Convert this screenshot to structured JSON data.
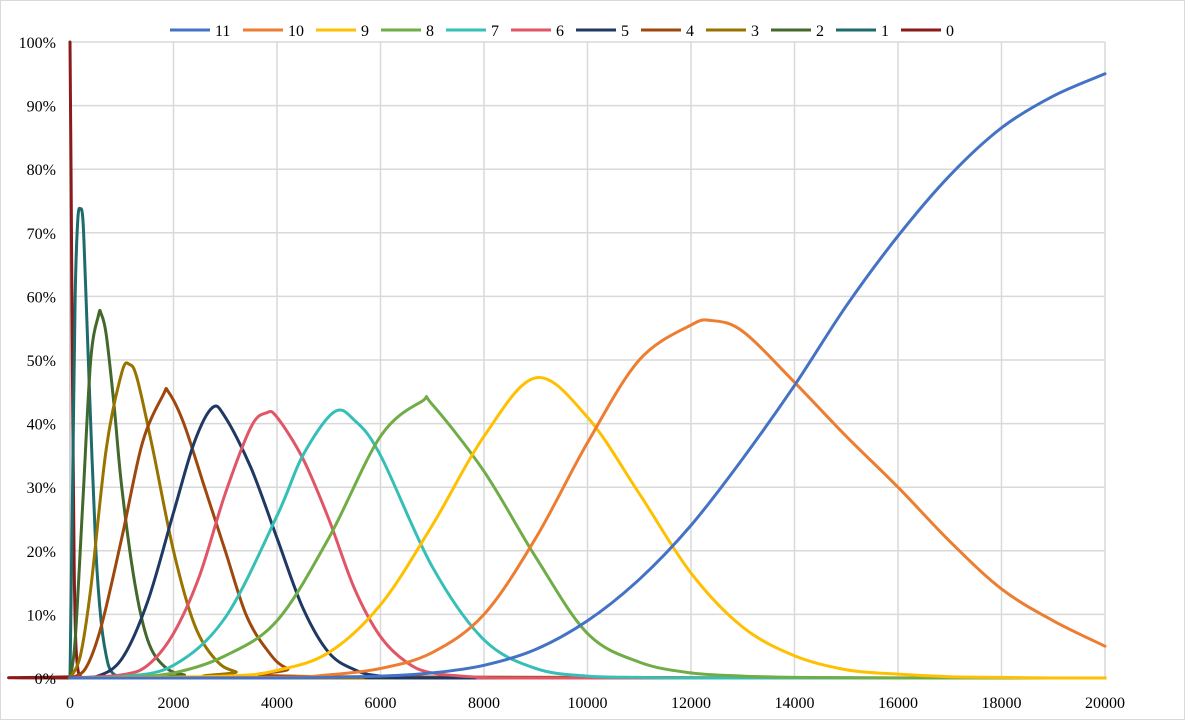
{
  "chart_data": {
    "type": "line",
    "title": "",
    "xlabel": "",
    "ylabel": "",
    "xlim": [
      0,
      20000
    ],
    "ylim": [
      0,
      1
    ],
    "x_ticks": [
      0,
      2000,
      4000,
      6000,
      8000,
      10000,
      12000,
      14000,
      16000,
      18000,
      20000
    ],
    "x_tick_labels": [
      "0",
      "2000",
      "4000",
      "6000",
      "8000",
      "10000",
      "12000",
      "14000",
      "16000",
      "18000",
      "20000"
    ],
    "y_ticks": [
      0,
      0.1,
      0.2,
      0.3,
      0.4,
      0.5,
      0.6,
      0.7,
      0.8,
      0.9,
      1.0
    ],
    "y_tick_labels": [
      "0%",
      "10%",
      "20%",
      "30%",
      "40%",
      "50%",
      "60%",
      "70%",
      "80%",
      "90%",
      "100%"
    ],
    "grid": true,
    "legend_position": "top",
    "series": [
      {
        "name": "11",
        "color": "#4472C4",
        "x": [
          0,
          4000,
          6000,
          7000,
          8000,
          9000,
          10000,
          11000,
          12000,
          13000,
          14000,
          15000,
          16000,
          17000,
          18000,
          19000,
          20000
        ],
        "y": [
          0,
          0.0,
          0.003,
          0.008,
          0.02,
          0.045,
          0.09,
          0.155,
          0.24,
          0.345,
          0.46,
          0.585,
          0.695,
          0.79,
          0.865,
          0.915,
          0.95
        ]
      },
      {
        "name": "10",
        "color": "#ED7D31",
        "x": [
          0,
          4000,
          5000,
          6000,
          7000,
          8000,
          9000,
          10000,
          11000,
          12000,
          12400,
          13000,
          14000,
          15000,
          16000,
          17000,
          18000,
          19000,
          20000
        ],
        "y": [
          0,
          0.001,
          0.005,
          0.015,
          0.04,
          0.1,
          0.22,
          0.37,
          0.5,
          0.555,
          0.562,
          0.545,
          0.465,
          0.38,
          0.3,
          0.215,
          0.14,
          0.09,
          0.05
        ]
      },
      {
        "name": "9",
        "color": "#FFC000",
        "x": [
          0,
          3000,
          4000,
          5000,
          6000,
          7000,
          8000,
          9000,
          10000,
          11000,
          12000,
          13000,
          14000,
          15000,
          16000,
          17000,
          18000,
          19000,
          20000
        ],
        "y": [
          0,
          0.003,
          0.012,
          0.04,
          0.115,
          0.24,
          0.38,
          0.472,
          0.41,
          0.29,
          0.165,
          0.08,
          0.035,
          0.013,
          0.006,
          0.002,
          0.001,
          0,
          0
        ]
      },
      {
        "name": "8",
        "color": "#70AD47",
        "x": [
          0,
          1000,
          2000,
          3000,
          4000,
          5000,
          6000,
          6800,
          7000,
          8000,
          9000,
          10000,
          11000,
          12000,
          13000,
          14000,
          16000,
          20000
        ],
        "y": [
          0,
          0.001,
          0.008,
          0.035,
          0.09,
          0.22,
          0.38,
          0.435,
          0.43,
          0.325,
          0.19,
          0.07,
          0.025,
          0.008,
          0.003,
          0.001,
          0,
          0
        ]
      },
      {
        "name": "7",
        "color": "#36BFB6",
        "x": [
          0,
          1000,
          2000,
          3000,
          4000,
          4500,
          5100,
          5500,
          6000,
          7000,
          8000,
          9000,
          10000,
          11000,
          12000,
          14000,
          20000
        ],
        "y": [
          0,
          0.002,
          0.02,
          0.095,
          0.255,
          0.35,
          0.418,
          0.405,
          0.35,
          0.175,
          0.06,
          0.015,
          0.003,
          0.001,
          0,
          0,
          0
        ]
      },
      {
        "name": "6",
        "color": "#E05666",
        "x": [
          0,
          1000,
          1500,
          2000,
          2500,
          3000,
          3500,
          3800,
          4000,
          4500,
          5000,
          5500,
          6000,
          6500,
          7000,
          8000,
          9000,
          20000
        ],
        "y": [
          0,
          0.005,
          0.02,
          0.07,
          0.16,
          0.29,
          0.395,
          0.417,
          0.41,
          0.345,
          0.25,
          0.14,
          0.065,
          0.025,
          0.008,
          0.001,
          0,
          0
        ]
      },
      {
        "name": "5",
        "color": "#1F3864",
        "x": [
          0,
          500,
          1000,
          1500,
          2000,
          2400,
          2750,
          3000,
          3500,
          4000,
          4500,
          5000,
          5500,
          6000,
          7000,
          20000
        ],
        "y": [
          0,
          0.002,
          0.03,
          0.12,
          0.26,
          0.37,
          0.425,
          0.41,
          0.33,
          0.22,
          0.11,
          0.04,
          0.013,
          0.003,
          0,
          0
        ]
      },
      {
        "name": "4",
        "color": "#9E480E",
        "x": [
          0,
          300,
          600,
          1000,
          1400,
          1800,
          1900,
          2200,
          2600,
          3000,
          3400,
          3800,
          4200,
          5000,
          20000
        ],
        "y": [
          0,
          0.015,
          0.08,
          0.22,
          0.37,
          0.445,
          0.45,
          0.4,
          0.3,
          0.2,
          0.1,
          0.045,
          0.015,
          0.002,
          0
        ]
      },
      {
        "name": "3",
        "color": "#997300",
        "x": [
          0,
          200,
          400,
          700,
          1000,
          1150,
          1300,
          1600,
          2000,
          2400,
          2800,
          3200,
          4000,
          20000
        ],
        "y": [
          0,
          0.035,
          0.14,
          0.36,
          0.48,
          0.493,
          0.47,
          0.36,
          0.2,
          0.085,
          0.03,
          0.01,
          0,
          0
        ]
      },
      {
        "name": "2",
        "color": "#43682B",
        "x": [
          0,
          100,
          250,
          400,
          550,
          600,
          700,
          850,
          1000,
          1250,
          1500,
          1800,
          2200,
          3000,
          20000
        ],
        "y": [
          0,
          0.06,
          0.28,
          0.5,
          0.57,
          0.573,
          0.54,
          0.43,
          0.3,
          0.15,
          0.06,
          0.02,
          0.005,
          0,
          0
        ]
      },
      {
        "name": "1",
        "color": "#1E6B6B",
        "x": [
          0,
          50,
          100,
          150,
          200,
          250,
          300,
          400,
          500,
          600,
          700,
          800,
          1000,
          1500,
          20000
        ],
        "y": [
          0,
          0.3,
          0.6,
          0.72,
          0.738,
          0.72,
          0.62,
          0.4,
          0.2,
          0.09,
          0.035,
          0.01,
          0.002,
          0,
          0
        ]
      },
      {
        "name": "0",
        "color": "#8B1A1A",
        "x": [
          0,
          20,
          50,
          80,
          110,
          150,
          200,
          300,
          20000
        ],
        "y": [
          1.0,
          0.8,
          0.45,
          0.18,
          0.06,
          0.015,
          0.003,
          0,
          0
        ]
      }
    ]
  }
}
